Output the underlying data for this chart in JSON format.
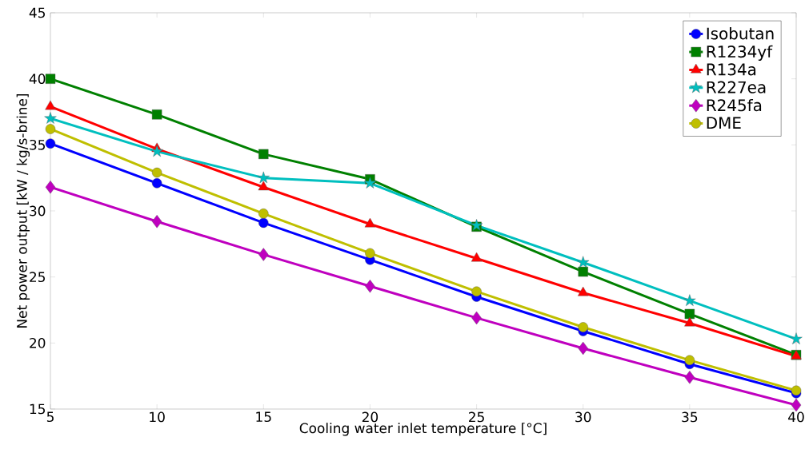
{
  "chart_data": {
    "type": "line",
    "xlabel": "Cooling water inlet temperature [°C]",
    "ylabel": "Net power output [kW / kg/s-brine]",
    "x": [
      5,
      10,
      15,
      20,
      25,
      30,
      35,
      40
    ],
    "xlim": [
      5,
      40
    ],
    "xticks": [
      5,
      10,
      15,
      20,
      25,
      30,
      35,
      40
    ],
    "ylim": [
      15,
      45
    ],
    "yticks": [
      15,
      20,
      25,
      30,
      35,
      40,
      45
    ],
    "grid": false,
    "legend": "top right",
    "line_style": "solid",
    "series": [
      {
        "name": "Isobutan",
        "color": "#0000ff",
        "marker": "circle",
        "values": [
          35.1,
          32.1,
          29.1,
          26.3,
          23.5,
          20.9,
          18.4,
          16.2
        ]
      },
      {
        "name": "R1234yf",
        "color": "#008000",
        "marker": "square",
        "values": [
          40.0,
          37.3,
          34.3,
          32.4,
          28.8,
          25.4,
          22.2,
          19.1
        ]
      },
      {
        "name": "R134a",
        "color": "#ff0000",
        "marker": "triangle",
        "values": [
          37.9,
          34.7,
          31.8,
          29.0,
          26.4,
          23.8,
          21.5,
          19.0
        ]
      },
      {
        "name": "R227ea",
        "color": "#00bfbf",
        "marker": "star",
        "values": [
          37.0,
          34.5,
          32.5,
          32.1,
          28.9,
          26.1,
          23.2,
          20.3
        ]
      },
      {
        "name": "R245fa",
        "color": "#bf00bf",
        "marker": "diamond",
        "values": [
          31.8,
          29.2,
          26.7,
          24.3,
          21.9,
          19.6,
          17.4,
          15.3
        ]
      },
      {
        "name": "DME",
        "color": "#bfbf00",
        "marker": "circle",
        "values": [
          36.2,
          32.9,
          29.8,
          26.8,
          23.9,
          21.2,
          18.7,
          16.4
        ]
      }
    ]
  }
}
